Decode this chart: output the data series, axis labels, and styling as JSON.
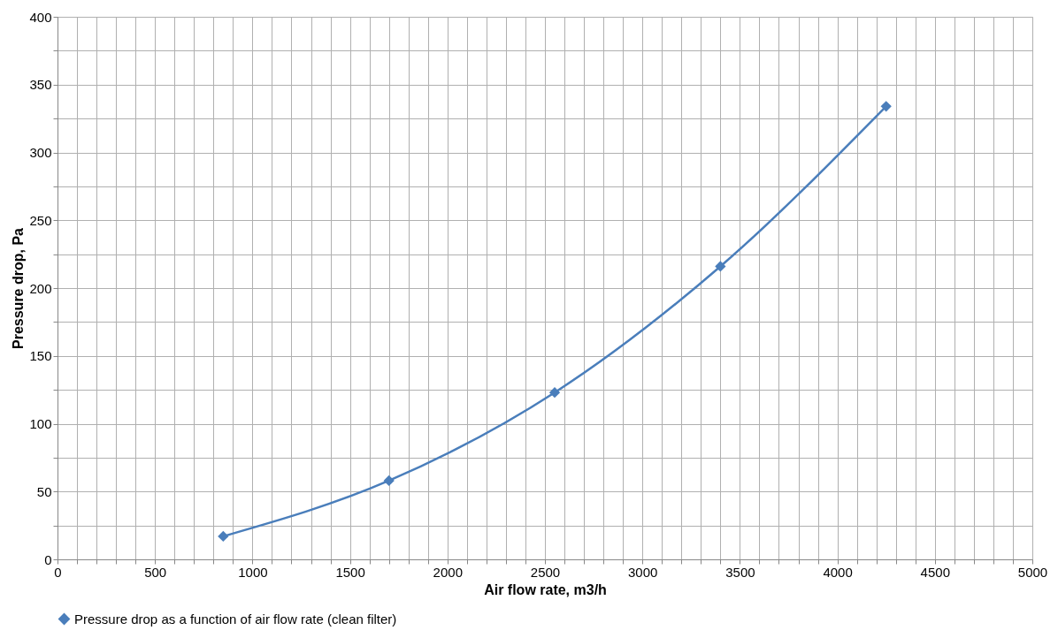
{
  "chart_data": {
    "type": "line",
    "xlabel": "Air flow rate, m3/h",
    "ylabel": "Pressure drop, Pa",
    "x": [
      850,
      1700,
      2550,
      3400,
      4250
    ],
    "series": [
      {
        "name": "Pressure drop as a function of air flow rate (clean filter)",
        "color": "#4a7ebb",
        "values": [
          17,
          58,
          123,
          216,
          334
        ]
      }
    ],
    "xlim": [
      0,
      5000
    ],
    "ylim": [
      0,
      400
    ],
    "xticks": [
      0,
      {
        "value": 100,
        "label": null
      },
      {
        "value": 200,
        "label": null
      },
      {
        "value": 300,
        "label": null
      },
      {
        "value": 400,
        "label": null
      },
      500,
      {
        "value": 600,
        "label": null
      },
      {
        "value": 700,
        "label": null
      },
      {
        "value": 800,
        "label": null
      },
      {
        "value": 900,
        "label": null
      },
      1000,
      {
        "value": 1100,
        "label": null
      },
      {
        "value": 1200,
        "label": null
      },
      {
        "value": 1300,
        "label": null
      },
      {
        "value": 1400,
        "label": null
      },
      1500,
      {
        "value": 1600,
        "label": null
      },
      {
        "value": 1700,
        "label": null
      },
      {
        "value": 1800,
        "label": null
      },
      {
        "value": 1900,
        "label": null
      },
      2000,
      {
        "value": 2100,
        "label": null
      },
      {
        "value": 2200,
        "label": null
      },
      {
        "value": 2300,
        "label": null
      },
      {
        "value": 2400,
        "label": null
      },
      2500,
      {
        "value": 2600,
        "label": null
      },
      {
        "value": 2700,
        "label": null
      },
      {
        "value": 2800,
        "label": null
      },
      {
        "value": 2900,
        "label": null
      },
      3000,
      {
        "value": 3100,
        "label": null
      },
      {
        "value": 3200,
        "label": null
      },
      {
        "value": 3300,
        "label": null
      },
      {
        "value": 3400,
        "label": null
      },
      3500,
      {
        "value": 3600,
        "label": null
      },
      {
        "value": 3700,
        "label": null
      },
      {
        "value": 3800,
        "label": null
      },
      {
        "value": 3900,
        "label": null
      },
      4000,
      {
        "value": 4100,
        "label": null
      },
      {
        "value": 4200,
        "label": null
      },
      {
        "value": 4300,
        "label": null
      },
      {
        "value": 4400,
        "label": null
      },
      4500,
      {
        "value": 4600,
        "label": null
      },
      {
        "value": 4700,
        "label": null
      },
      {
        "value": 4800,
        "label": null
      },
      {
        "value": 4900,
        "label": null
      },
      5000
    ],
    "yticks": [
      0,
      {
        "value": 25,
        "label": null
      },
      50,
      {
        "value": 75,
        "label": null
      },
      100,
      {
        "value": 125,
        "label": null
      },
      150,
      {
        "value": 175,
        "label": null
      },
      200,
      {
        "value": 225,
        "label": null
      },
      250,
      {
        "value": 275,
        "label": null
      },
      300,
      {
        "value": 325,
        "label": null
      },
      350,
      {
        "value": 375,
        "label": null
      },
      400
    ],
    "grid": true,
    "legend": "bottom",
    "marker": "diamond",
    "line_style": "solid"
  }
}
